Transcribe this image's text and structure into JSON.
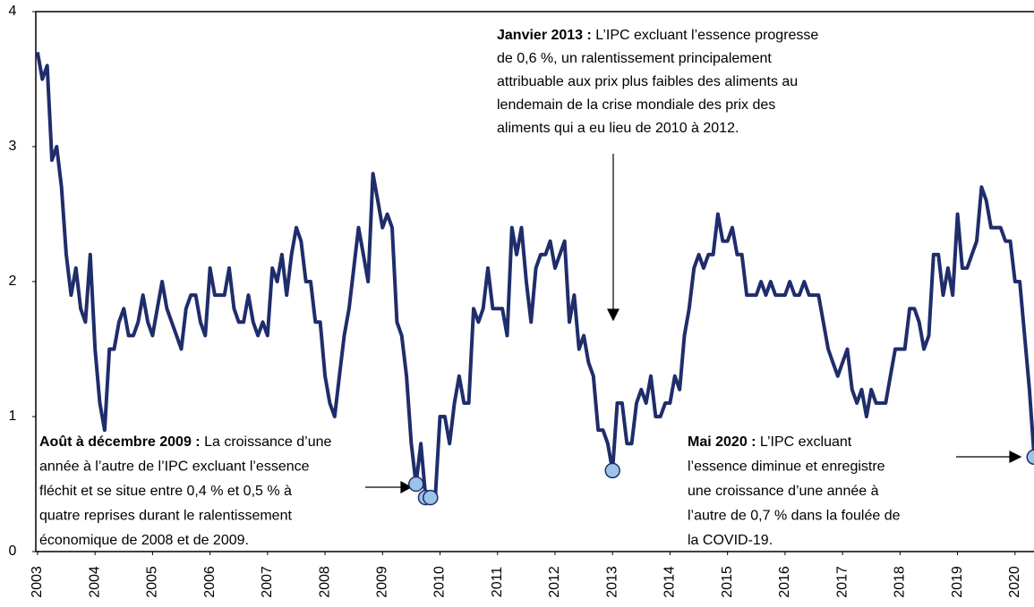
{
  "chart_data": {
    "type": "line",
    "x": [
      2003,
      2003.083,
      2003.167,
      2003.25,
      2003.333,
      2003.417,
      2003.5,
      2003.583,
      2003.667,
      2003.75,
      2003.833,
      2003.917,
      2004,
      2004.083,
      2004.167,
      2004.25,
      2004.333,
      2004.417,
      2004.5,
      2004.583,
      2004.667,
      2004.75,
      2004.833,
      2004.917,
      2005,
      2005.083,
      2005.167,
      2005.25,
      2005.333,
      2005.417,
      2005.5,
      2005.583,
      2005.667,
      2005.75,
      2005.833,
      2005.917,
      2006,
      2006.083,
      2006.167,
      2006.25,
      2006.333,
      2006.417,
      2006.5,
      2006.583,
      2006.667,
      2006.75,
      2006.833,
      2006.917,
      2007,
      2007.083,
      2007.167,
      2007.25,
      2007.333,
      2007.417,
      2007.5,
      2007.583,
      2007.667,
      2007.75,
      2007.833,
      2007.917,
      2008,
      2008.083,
      2008.167,
      2008.25,
      2008.333,
      2008.417,
      2008.5,
      2008.583,
      2008.667,
      2008.75,
      2008.833,
      2008.917,
      2009,
      2009.083,
      2009.167,
      2009.25,
      2009.333,
      2009.417,
      2009.5,
      2009.583,
      2009.667,
      2009.75,
      2009.833,
      2009.917,
      2010,
      2010.083,
      2010.167,
      2010.25,
      2010.333,
      2010.417,
      2010.5,
      2010.583,
      2010.667,
      2010.75,
      2010.833,
      2010.917,
      2011,
      2011.083,
      2011.167,
      2011.25,
      2011.333,
      2011.417,
      2011.5,
      2011.583,
      2011.667,
      2011.75,
      2011.833,
      2011.917,
      2012,
      2012.083,
      2012.167,
      2012.25,
      2012.333,
      2012.417,
      2012.5,
      2012.583,
      2012.667,
      2012.75,
      2012.833,
      2012.917,
      2013,
      2013.083,
      2013.167,
      2013.25,
      2013.333,
      2013.417,
      2013.5,
      2013.583,
      2013.667,
      2013.75,
      2013.833,
      2013.917,
      2014,
      2014.083,
      2014.167,
      2014.25,
      2014.333,
      2014.417,
      2014.5,
      2014.583,
      2014.667,
      2014.75,
      2014.833,
      2014.917,
      2015,
      2015.083,
      2015.167,
      2015.25,
      2015.333,
      2015.417,
      2015.5,
      2015.583,
      2015.667,
      2015.75,
      2015.833,
      2015.917,
      2016,
      2016.083,
      2016.167,
      2016.25,
      2016.333,
      2016.417,
      2016.5,
      2016.583,
      2016.667,
      2016.75,
      2016.833,
      2016.917,
      2017,
      2017.083,
      2017.167,
      2017.25,
      2017.333,
      2017.417,
      2017.5,
      2017.583,
      2017.667,
      2017.75,
      2017.833,
      2017.917,
      2018,
      2018.083,
      2018.167,
      2018.25,
      2018.333,
      2018.417,
      2018.5,
      2018.583,
      2018.667,
      2018.75,
      2018.833,
      2018.917,
      2019,
      2019.083,
      2019.167,
      2019.25,
      2019.333,
      2019.417,
      2019.5,
      2019.583,
      2019.667,
      2019.75,
      2019.833,
      2019.917,
      2020,
      2020.083,
      2020.167,
      2020.25,
      2020.333
    ],
    "values": [
      3.7,
      3.5,
      3.6,
      2.9,
      3.0,
      2.7,
      2.2,
      1.9,
      2.1,
      1.8,
      1.7,
      2.2,
      1.5,
      1.1,
      0.9,
      1.5,
      1.5,
      1.7,
      1.8,
      1.6,
      1.6,
      1.7,
      1.9,
      1.7,
      1.6,
      1.8,
      2.0,
      1.8,
      1.7,
      1.6,
      1.5,
      1.8,
      1.9,
      1.9,
      1.7,
      1.6,
      2.1,
      1.9,
      1.9,
      1.9,
      2.1,
      1.8,
      1.7,
      1.7,
      1.9,
      1.7,
      1.6,
      1.7,
      1.6,
      2.1,
      2.0,
      2.2,
      1.9,
      2.2,
      2.4,
      2.3,
      2.0,
      2.0,
      1.7,
      1.7,
      1.3,
      1.1,
      1.0,
      1.3,
      1.6,
      1.8,
      2.1,
      2.4,
      2.2,
      2.0,
      2.8,
      2.6,
      2.4,
      2.5,
      2.4,
      1.7,
      1.6,
      1.3,
      0.8,
      0.5,
      0.8,
      0.4,
      0.4,
      0.4,
      1.0,
      1.0,
      0.8,
      1.1,
      1.3,
      1.1,
      1.1,
      1.8,
      1.7,
      1.8,
      2.1,
      1.8,
      1.8,
      1.8,
      1.6,
      2.4,
      2.2,
      2.4,
      2.0,
      1.7,
      2.1,
      2.2,
      2.2,
      2.3,
      2.1,
      2.2,
      2.3,
      1.7,
      1.9,
      1.5,
      1.6,
      1.4,
      1.3,
      0.9,
      0.9,
      0.8,
      0.6,
      1.1,
      1.1,
      0.8,
      0.8,
      1.1,
      1.2,
      1.1,
      1.3,
      1.0,
      1.0,
      1.1,
      1.1,
      1.3,
      1.2,
      1.6,
      1.8,
      2.1,
      2.2,
      2.1,
      2.2,
      2.2,
      2.5,
      2.3,
      2.3,
      2.4,
      2.2,
      2.2,
      1.9,
      1.9,
      1.9,
      2.0,
      1.9,
      2.0,
      1.9,
      1.9,
      1.9,
      2.0,
      1.9,
      1.9,
      2.0,
      1.9,
      1.9,
      1.9,
      1.7,
      1.5,
      1.4,
      1.3,
      1.4,
      1.5,
      1.2,
      1.1,
      1.2,
      1.0,
      1.2,
      1.1,
      1.1,
      1.1,
      1.3,
      1.5,
      1.5,
      1.5,
      1.8,
      1.8,
      1.7,
      1.5,
      1.6,
      2.2,
      2.2,
      1.9,
      2.1,
      1.9,
      2.5,
      2.1,
      2.1,
      2.2,
      2.3,
      2.7,
      2.6,
      2.4,
      2.4,
      2.4,
      2.3,
      2.3,
      2.0,
      2.0,
      1.6,
      1.2,
      0.7
    ],
    "color": "#1f2d6b",
    "highlights": [
      2009.583,
      2009.75,
      2009.833,
      2013,
      2020.333
    ],
    "highlight_color": "#9dc3e6",
    "xlim": [
      2002.97,
      2020.33
    ],
    "xticks": [
      2003,
      2004,
      2005,
      2006,
      2007,
      2008,
      2009,
      2010,
      2011,
      2012,
      2013,
      2014,
      2015,
      2016,
      2017,
      2018,
      2019,
      2020
    ],
    "ylim": [
      0,
      4
    ],
    "yticks": [
      0,
      1,
      2,
      3,
      4
    ],
    "annotations": [
      {
        "bold": "Janvier 2013 :",
        "lines": [
          " L’IPC excluant l’essence progresse",
          "de 0,6 %, un ralentissement principalement",
          "attribuable aux prix plus faibles des aliments au",
          "lendemain de la crise mondiale des prix des",
          "aliments qui a eu lieu de 2010 à 2012."
        ]
      },
      {
        "bold": "Août à décembre 2009 :",
        "lines": [
          " La croissance d’une",
          "année à l’autre de l’IPC excluant l’essence",
          "fléchit et se situe entre 0,4 % et 0,5 % à",
          "quatre reprises durant le ralentissement",
          "économique de 2008 et de 2009."
        ]
      },
      {
        "bold": "Mai 2020 :",
        "lines": [
          " L’IPC excluant",
          "l’essence diminue et enregistre",
          "une croissance d’une année à",
          "l’autre de 0,7 % dans la foulée de",
          "la COVID-19."
        ]
      }
    ]
  }
}
